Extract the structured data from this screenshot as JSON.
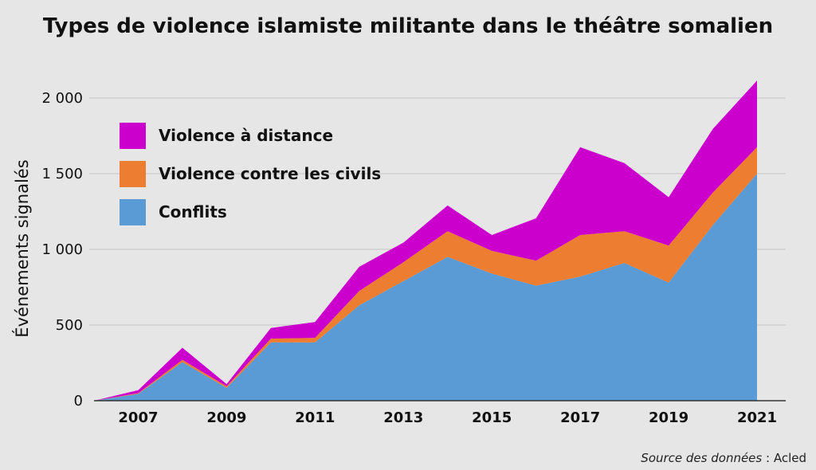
{
  "chart_data": {
    "type": "area",
    "stacked": true,
    "title": "Types de violence islamiste militante dans le théâtre somalien",
    "ylabel": "Événements signalés",
    "xlabel": "",
    "ylim": [
      0,
      2000
    ],
    "yticks": [
      0,
      500,
      1000,
      1500,
      2000
    ],
    "ytick_labels": [
      "0",
      "500",
      "1 000",
      "1 500",
      "2 000"
    ],
    "x": [
      2006,
      2007,
      2008,
      2009,
      2010,
      2011,
      2012,
      2013,
      2014,
      2015,
      2016,
      2017,
      2018,
      2019,
      2020,
      2021
    ],
    "xtick_labels": [
      "2007",
      "2009",
      "2011",
      "2013",
      "2015",
      "2017",
      "2019",
      "2021"
    ],
    "xtick_values": [
      2007,
      2009,
      2011,
      2013,
      2015,
      2017,
      2019,
      2021
    ],
    "grid": true,
    "legend_position": "top-left",
    "series": [
      {
        "name": "Conflits",
        "color": "#5b9bd5",
        "values": [
          0,
          45,
          255,
          85,
          385,
          385,
          630,
          790,
          950,
          840,
          760,
          820,
          910,
          780,
          1160,
          1500
        ]
      },
      {
        "name": "Violence contre les civils",
        "color": "#ed7d31",
        "values": [
          0,
          5,
          15,
          10,
          25,
          30,
          95,
          125,
          170,
          150,
          165,
          275,
          210,
          245,
          215,
          175
        ]
      },
      {
        "name": "Violence à distance",
        "color": "#cc00cc",
        "values": [
          0,
          20,
          80,
          15,
          70,
          105,
          160,
          130,
          170,
          105,
          280,
          580,
          450,
          320,
          420,
          440
        ]
      }
    ],
    "legend_order": [
      "Violence à distance",
      "Violence contre les civils",
      "Conflits"
    ]
  },
  "source": {
    "prefix": "Source des données",
    "separator": " : ",
    "name": "Acled"
  }
}
